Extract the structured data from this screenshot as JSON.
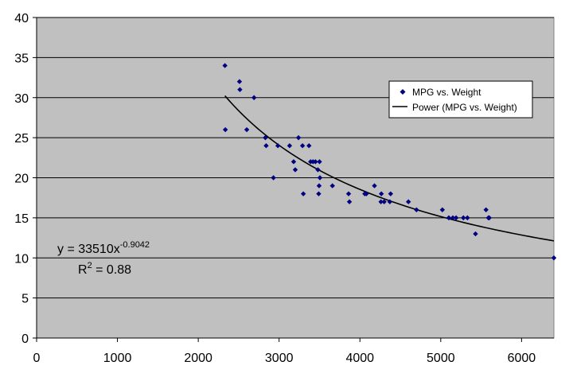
{
  "chart_data": {
    "type": "scatter",
    "title": "",
    "xlabel": "",
    "ylabel": "",
    "xlim": [
      0,
      6400
    ],
    "ylim": [
      0,
      40
    ],
    "x_ticks": [
      0,
      1000,
      2000,
      3000,
      4000,
      5000,
      6000
    ],
    "y_ticks": [
      0,
      5,
      10,
      15,
      20,
      25,
      30,
      35,
      40
    ],
    "grid": "horizontal",
    "legend_position": "right",
    "colors": {
      "plot_background": "#c0c0c0",
      "points": "#000080",
      "trendline": "#000000"
    },
    "series": [
      {
        "name": "MPG vs. Weight",
        "kind": "scatter",
        "points": [
          [
            2330,
            34
          ],
          [
            2335,
            26
          ],
          [
            2510,
            32
          ],
          [
            2515,
            31
          ],
          [
            2600,
            26
          ],
          [
            2690,
            30
          ],
          [
            2830,
            25
          ],
          [
            2840,
            24
          ],
          [
            2930,
            20
          ],
          [
            2985,
            24
          ],
          [
            3130,
            24
          ],
          [
            3180,
            22
          ],
          [
            3200,
            21
          ],
          [
            3240,
            25
          ],
          [
            3290,
            24
          ],
          [
            3300,
            18
          ],
          [
            3370,
            24
          ],
          [
            3390,
            22
          ],
          [
            3420,
            22
          ],
          [
            3450,
            22
          ],
          [
            3480,
            21
          ],
          [
            3490,
            18
          ],
          [
            3495,
            19
          ],
          [
            3500,
            22
          ],
          [
            3505,
            20
          ],
          [
            3660,
            19
          ],
          [
            3860,
            18
          ],
          [
            3870,
            17
          ],
          [
            4060,
            18
          ],
          [
            4080,
            18
          ],
          [
            4180,
            19
          ],
          [
            4260,
            17
          ],
          [
            4265,
            18
          ],
          [
            4300,
            17
          ],
          [
            4370,
            17
          ],
          [
            4380,
            18
          ],
          [
            4600,
            17
          ],
          [
            4700,
            16
          ],
          [
            5020,
            16
          ],
          [
            5100,
            15
          ],
          [
            5150,
            15
          ],
          [
            5190,
            15
          ],
          [
            5280,
            15
          ],
          [
            5330,
            15
          ],
          [
            5430,
            13
          ],
          [
            5560,
            16
          ],
          [
            5590,
            15
          ],
          [
            5600,
            15
          ],
          [
            6400,
            10
          ]
        ]
      },
      {
        "name": "Power (MPG vs. Weight)",
        "kind": "trendline",
        "coefficient": 33510,
        "exponent": -0.9042,
        "x_range": [
          2330,
          6400
        ]
      }
    ],
    "annotations": {
      "equation_prefix": "y = 33510x",
      "equation_exponent": "-0.9042",
      "r2_prefix": "R",
      "r2_exponent": "2",
      "r2_value": " = 0.88"
    }
  }
}
